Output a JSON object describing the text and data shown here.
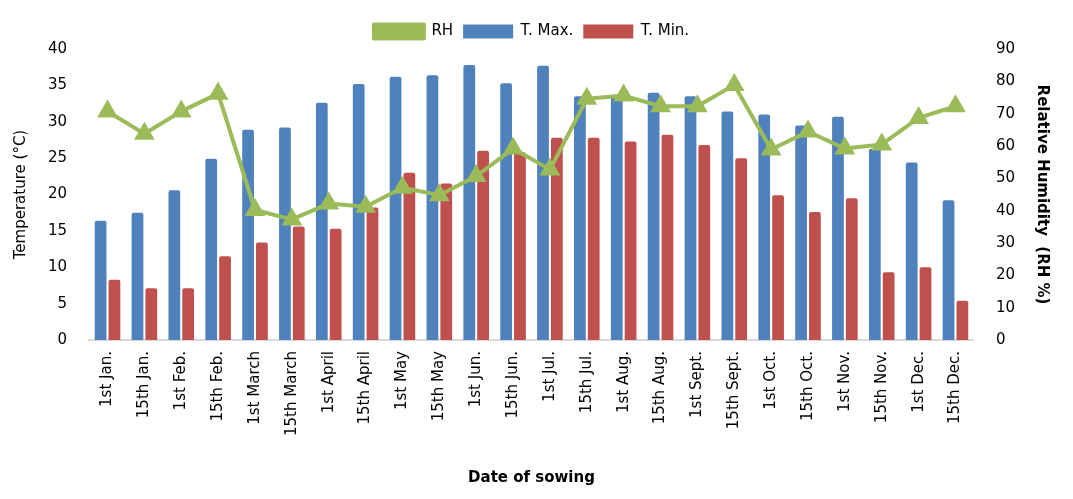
{
  "chart_data": {
    "type": "bar",
    "xlabel": "Date of sowing",
    "ylabel": "Temperature (°C)",
    "y2label": "Relative Humidity  (RH %)",
    "categories": [
      "1st Jan.",
      "15th Jan.",
      "1st Feb.",
      "15th Feb.",
      "1st March",
      "15th March",
      "1st April",
      "15th April",
      "1st May",
      "15th May",
      "1st Jun.",
      "15th Jun.",
      "1st Jul.",
      "15th Jul.",
      "1st Aug.",
      "15th Aug.",
      "1st Sept.",
      "15th Sept.",
      "1st Oct.",
      "15th Oct.",
      "1st Nov.",
      "15th Nov.",
      "1st Dec.",
      "15th Dec."
    ],
    "series": [
      {
        "name": "T. Max.",
        "color": "#4f81bd",
        "values": [
          16.4,
          17.5,
          20.6,
          24.9,
          28.9,
          29.2,
          32.6,
          35.2,
          36.2,
          36.4,
          37.8,
          35.3,
          37.7,
          33.5,
          33.6,
          34.0,
          33.5,
          31.4,
          31.0,
          29.5,
          30.7,
          26.3,
          24.4,
          19.2
        ]
      },
      {
        "name": "T. Min.",
        "color": "#c0504d",
        "values": [
          8.3,
          7.1,
          7.1,
          11.5,
          13.4,
          15.6,
          15.3,
          18.2,
          23.0,
          21.5,
          26.0,
          25.8,
          27.8,
          27.8,
          27.3,
          28.2,
          26.8,
          25.0,
          19.9,
          17.6,
          19.5,
          9.3,
          10.0,
          5.4
        ]
      },
      {
        "name": "RH",
        "type": "line",
        "axis": "y2",
        "marker": "triangle",
        "color": "#9bbb59",
        "values": [
          70.7,
          63.8,
          70.7,
          76.2,
          40.2,
          37.3,
          42.2,
          41.2,
          47.1,
          44.8,
          50.7,
          59.2,
          52.7,
          74.6,
          75.6,
          72.3,
          72.3,
          78.9,
          58.9,
          64.5,
          59.2,
          60.5,
          68.7,
          72.3
        ]
      }
    ],
    "ylim": [
      0,
      40
    ],
    "yticks": [
      0,
      5,
      10,
      15,
      20,
      25,
      30,
      35,
      40
    ],
    "y2lim": [
      0,
      90
    ],
    "y2ticks": [
      0,
      10,
      20,
      30,
      40,
      50,
      60,
      70,
      80,
      90
    ],
    "grid": false,
    "legend": "top"
  }
}
